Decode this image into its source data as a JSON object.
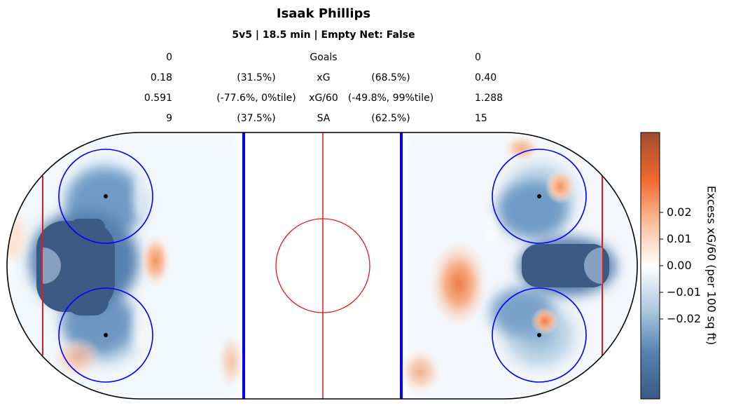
{
  "header": {
    "title": "Isaak Phillips",
    "subtitle": "5v5 | 18.5 min | Empty Net: False"
  },
  "stats": [
    {
      "left": "0",
      "left_pct": "",
      "label": "Goals",
      "right_pct": "",
      "right": "0"
    },
    {
      "left": "0.18",
      "left_pct": "(31.5%)",
      "label": "xG",
      "right_pct": "(68.5%)",
      "right": "0.40"
    },
    {
      "left": "0.591",
      "left_pct": "(-77.6%, 0%tile)",
      "label": "xG/60",
      "right_pct": "(-49.8%, 99%tile)",
      "right": "1.288"
    },
    {
      "left": "9",
      "left_pct": "(37.5%)",
      "label": "SA",
      "right_pct": "(62.5%)",
      "right": "15"
    }
  ],
  "colorbar": {
    "label": "Excess xG/60 (per 100 sq ft)",
    "ticks": [
      "0.02",
      "0.01",
      "0.00",
      "−0.01",
      "−0.02"
    ],
    "tick_values": [
      0.02,
      0.01,
      0.0,
      -0.01,
      -0.02
    ],
    "range": [
      -0.05,
      0.05
    ],
    "colors": {
      "negative": "#3b5b85",
      "neutral": "#ffffff",
      "positive": "#f26a2e",
      "max": "#a04b2f"
    }
  },
  "chart_data": {
    "type": "heatmap",
    "title": "Isaak Phillips",
    "subtitle": "5v5 | 18.5 min | Empty Net: False",
    "colorbar_label": "Excess xG/60 (per 100 sq ft)",
    "value_range": [
      -0.05,
      0.05
    ],
    "colorbar_ticks": [
      0.02,
      0.01,
      0.0,
      -0.01,
      -0.02
    ],
    "hotspots": [
      {
        "side": "left",
        "region": "slot / crease",
        "value": -0.05
      },
      {
        "side": "left",
        "region": "upper faceoff circle",
        "value": -0.03
      },
      {
        "side": "left",
        "region": "lower faceoff circle",
        "value": -0.02
      },
      {
        "side": "left",
        "region": "high slot",
        "value": 0.012
      },
      {
        "side": "left",
        "region": "lower corner",
        "value": 0.01
      },
      {
        "side": "right",
        "region": "slot / crease",
        "value": -0.05
      },
      {
        "side": "right",
        "region": "upper faceoff circle",
        "value": -0.025
      },
      {
        "side": "right",
        "region": "lower faceoff circle",
        "value": -0.02
      },
      {
        "side": "right",
        "region": "upper circle top",
        "value": 0.012
      },
      {
        "side": "right",
        "region": "point / inside blue line",
        "value": 0.028
      },
      {
        "side": "right",
        "region": "lower circle center",
        "value": 0.012
      },
      {
        "side": "right",
        "region": "lower corner",
        "value": 0.01
      }
    ]
  }
}
